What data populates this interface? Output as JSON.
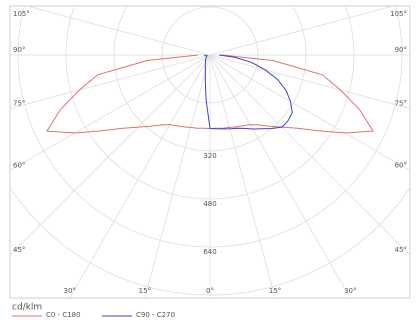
{
  "chart_data": {
    "type": "polar",
    "unit_label": "cd/klm",
    "angles": [
      0,
      5,
      10,
      15,
      20,
      25,
      30,
      35,
      40,
      45,
      50,
      55,
      60,
      65,
      70,
      75,
      80,
      85,
      90
    ],
    "angle_ticks": [
      {
        "value": 0,
        "label": "0°"
      },
      {
        "value": 15,
        "label": "15°"
      },
      {
        "value": 30,
        "label": "30°"
      },
      {
        "value": 45,
        "label": "45°"
      },
      {
        "value": 60,
        "label": "60°"
      },
      {
        "value": 75,
        "label": "75°"
      },
      {
        "value": 90,
        "label": "90°"
      },
      {
        "value": 105,
        "label": "105°"
      }
    ],
    "rlim": [
      0,
      800
    ],
    "rticks": [
      320,
      480,
      640
    ],
    "grid": true,
    "series": [
      {
        "name": "C0 - C180",
        "color": "#e07070",
        "left": [
          245,
          245,
          248,
          250,
          255,
          260,
          268,
          285,
          310,
          340,
          380,
          440,
          520,
          600,
          530,
          450,
          380,
          210,
          40
        ],
        "right": [
          245,
          245,
          248,
          250,
          255,
          260,
          268,
          285,
          310,
          340,
          380,
          440,
          520,
          600,
          530,
          450,
          380,
          210,
          40
        ]
      },
      {
        "name": "C90 - C270",
        "color": "#4040d0",
        "left": [
          245,
          150,
          90,
          60,
          45,
          38,
          30,
          26,
          23,
          20,
          18,
          16,
          15,
          14,
          12,
          10,
          12,
          15,
          20
        ],
        "right": [
          245,
          247,
          250,
          255,
          260,
          270,
          285,
          300,
          320,
          340,
          340,
          335,
          310,
          280,
          240,
          190,
          140,
          80,
          30
        ]
      }
    ]
  }
}
